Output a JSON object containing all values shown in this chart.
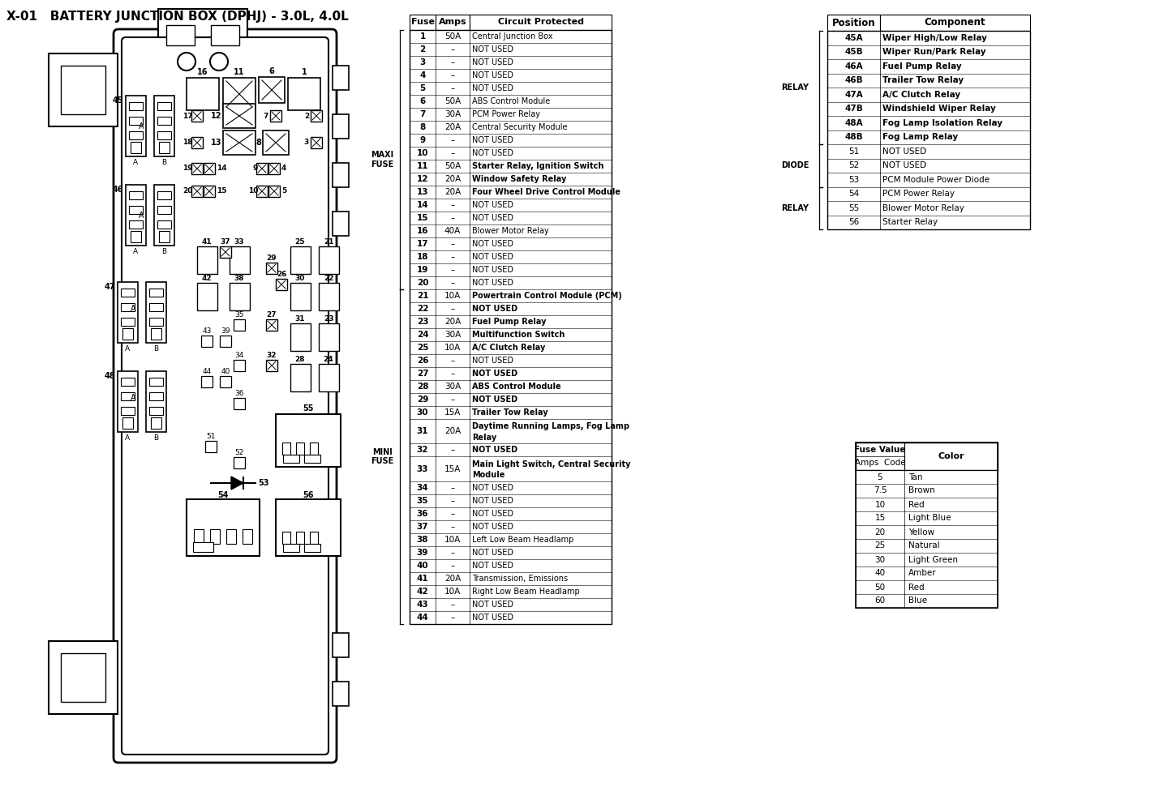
{
  "title": "X-01   BATTERY JUNCTION BOX (DPHJ) - 3.0L, 4.0L",
  "fuse_table": {
    "headers": [
      "Fuse",
      "Amps",
      "Circuit Protected"
    ],
    "rows": [
      [
        "1",
        "50A",
        "Central Junction Box"
      ],
      [
        "2",
        "–",
        "NOT USED"
      ],
      [
        "3",
        "–",
        "NOT USED"
      ],
      [
        "4",
        "–",
        "NOT USED"
      ],
      [
        "5",
        "–",
        "NOT USED"
      ],
      [
        "6",
        "50A",
        "ABS Control Module"
      ],
      [
        "7",
        "30A",
        "PCM Power Relay"
      ],
      [
        "8",
        "20A",
        "Central Security Module"
      ],
      [
        "9",
        "–",
        "NOT USED"
      ],
      [
        "10",
        "–",
        "NOT USED"
      ],
      [
        "11",
        "50A",
        "Starter Relay, Ignition Switch"
      ],
      [
        "12",
        "20A",
        "Window Safety Relay"
      ],
      [
        "13",
        "20A",
        "Four Wheel Drive Control Module"
      ],
      [
        "14",
        "–",
        "NOT USED"
      ],
      [
        "15",
        "–",
        "NOT USED"
      ],
      [
        "16",
        "40A",
        "Blower Motor Relay"
      ],
      [
        "17",
        "–",
        "NOT USED"
      ],
      [
        "18",
        "–",
        "NOT USED"
      ],
      [
        "19",
        "–",
        "NOT USED"
      ],
      [
        "20",
        "–",
        "NOT USED"
      ],
      [
        "21",
        "10A",
        "Powertrain Control Module (PCM)"
      ],
      [
        "22",
        "–",
        "NOT USED"
      ],
      [
        "23",
        "20A",
        "Fuel Pump Relay"
      ],
      [
        "24",
        "30A",
        "Multifunction Switch"
      ],
      [
        "25",
        "10A",
        "A/C Clutch Relay"
      ],
      [
        "26",
        "–",
        "NOT USED"
      ],
      [
        "27",
        "–",
        "NOT USED"
      ],
      [
        "28",
        "30A",
        "ABS Control Module"
      ],
      [
        "29",
        "–",
        "NOT USED"
      ],
      [
        "30",
        "15A",
        "Trailer Tow Relay"
      ],
      [
        "31",
        "20A",
        "Daytime Running Lamps, Fog Lamp\nRelay"
      ],
      [
        "32",
        "–",
        "NOT USED"
      ],
      [
        "33",
        "15A",
        "Main Light Switch, Central Security\nModule"
      ],
      [
        "34",
        "–",
        "NOT USED"
      ],
      [
        "35",
        "–",
        "NOT USED"
      ],
      [
        "36",
        "–",
        "NOT USED"
      ],
      [
        "37",
        "–",
        "NOT USED"
      ],
      [
        "38",
        "10A",
        "Left Low Beam Headlamp"
      ],
      [
        "39",
        "–",
        "NOT USED"
      ],
      [
        "40",
        "–",
        "NOT USED"
      ],
      [
        "41",
        "20A",
        "Transmission, Emissions"
      ],
      [
        "42",
        "10A",
        "Right Low Beam Headlamp"
      ],
      [
        "43",
        "–",
        "NOT USED"
      ],
      [
        "44",
        "–",
        "NOT USED"
      ]
    ]
  },
  "relay_table": {
    "headers": [
      "Position",
      "Component"
    ],
    "rows": [
      [
        "45A",
        "Wiper High/Low Relay"
      ],
      [
        "45B",
        "Wiper Run/Park Relay"
      ],
      [
        "46A",
        "Fuel Pump Relay"
      ],
      [
        "46B",
        "Trailer Tow Relay"
      ],
      [
        "47A",
        "A/C Clutch Relay"
      ],
      [
        "47B",
        "Windshield Wiper Relay"
      ],
      [
        "48A",
        "Fog Lamp Isolation Relay"
      ],
      [
        "48B",
        "Fog Lamp Relay"
      ],
      [
        "51",
        "NOT USED"
      ],
      [
        "52",
        "NOT USED"
      ],
      [
        "53",
        "PCM Module Power Diode"
      ],
      [
        "54",
        "PCM Power Relay"
      ],
      [
        "55",
        "Blower Motor Relay"
      ],
      [
        "56",
        "Starter Relay"
      ]
    ]
  },
  "fuse_color_table": {
    "rows": [
      [
        "5",
        "Tan"
      ],
      [
        "7.5",
        "Brown"
      ],
      [
        "10",
        "Red"
      ],
      [
        "15",
        "Light Blue"
      ],
      [
        "20",
        "Yellow"
      ],
      [
        "25",
        "Natural"
      ],
      [
        "30",
        "Light Green"
      ],
      [
        "40",
        "Amber"
      ],
      [
        "50",
        "Red"
      ],
      [
        "60",
        "Blue"
      ]
    ]
  }
}
